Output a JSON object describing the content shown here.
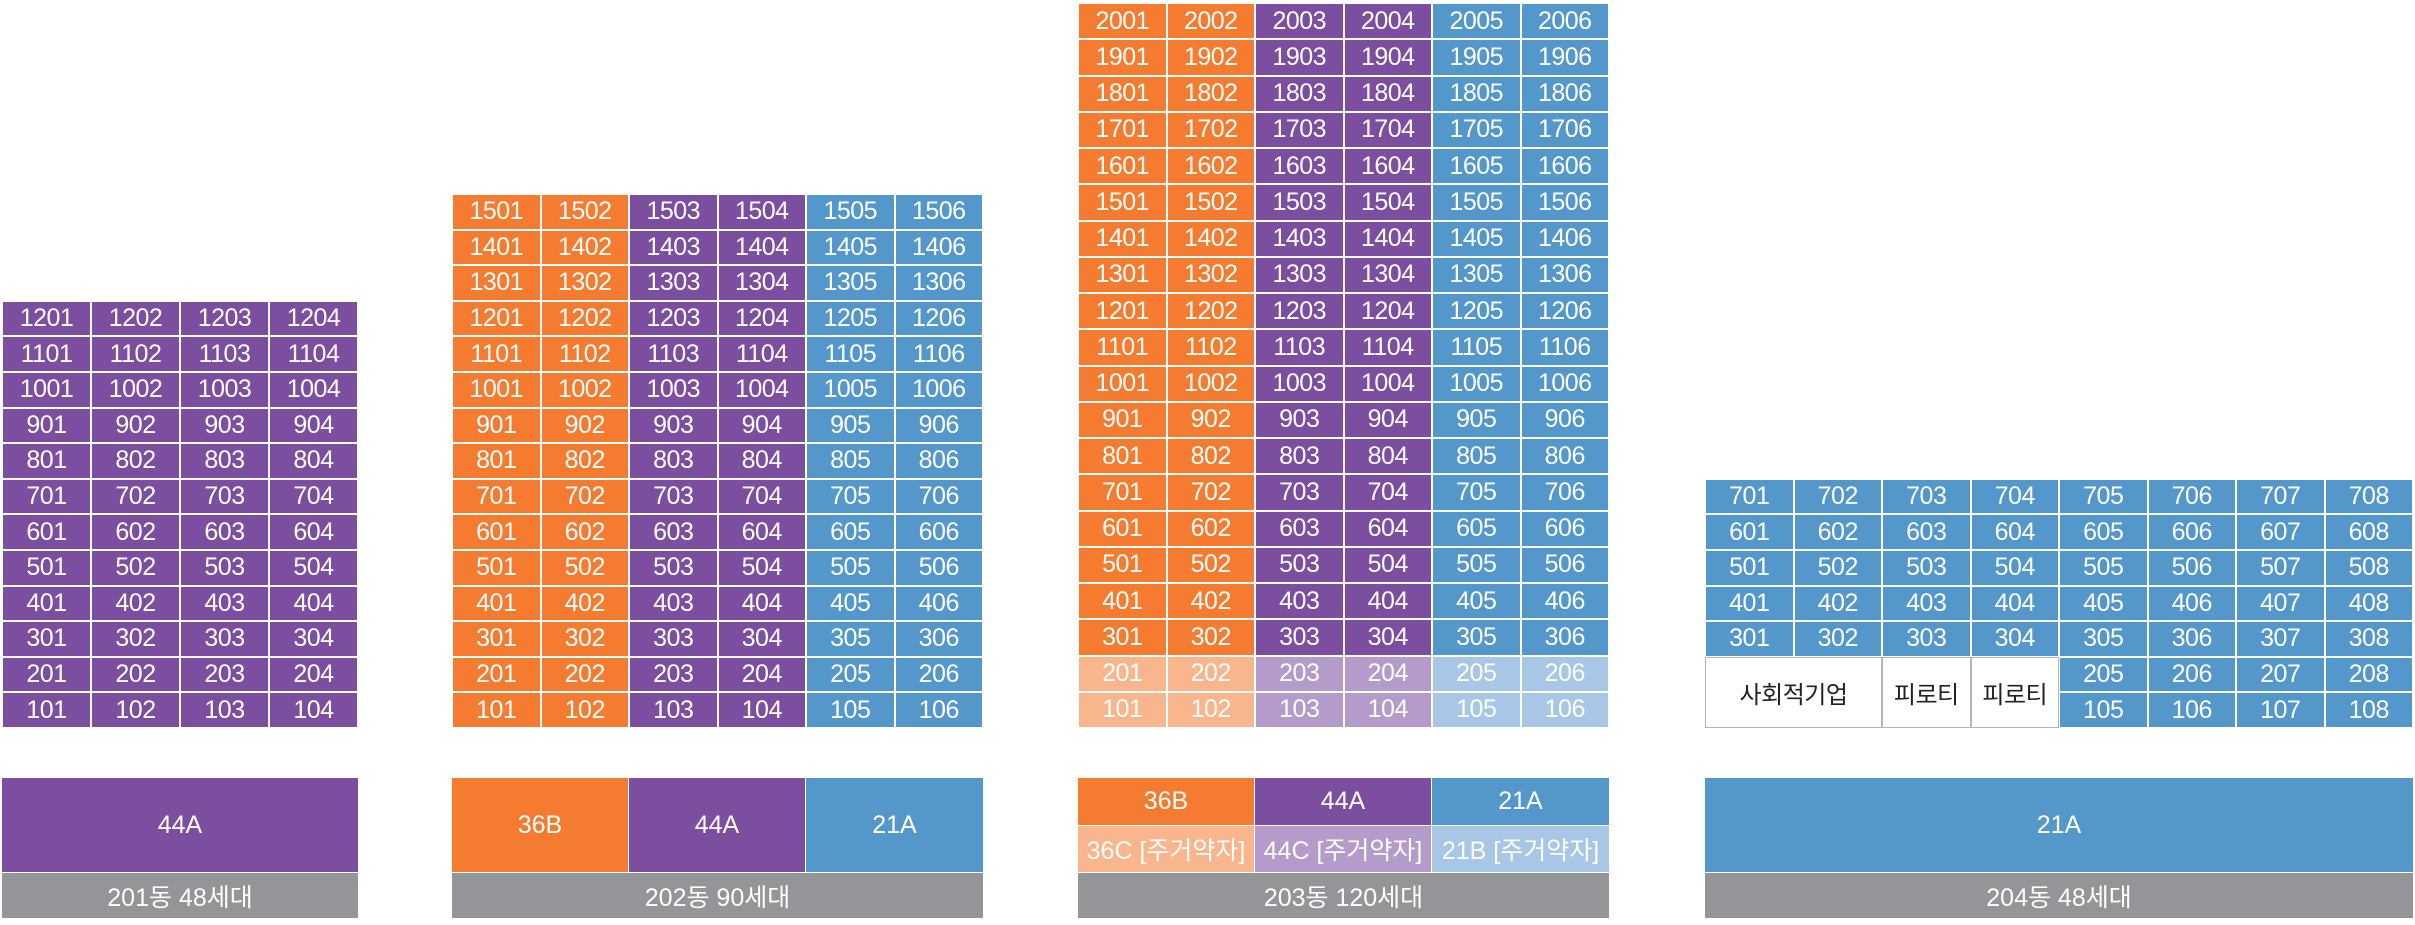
{
  "colors": {
    "orange": "#f47b2f",
    "purple": "#7b4ea0",
    "blue": "#5497cb",
    "orange_light": "#f9b58b",
    "purple_light": "#b49bc9",
    "blue_light": "#a8c6e5",
    "caption_gray": "#939598"
  },
  "buildings": [
    {
      "id": "b201",
      "caption": "201동 48세대",
      "columns": [
        "purple",
        "purple",
        "purple",
        "purple"
      ],
      "floors": [
        12,
        11,
        10,
        9,
        8,
        7,
        6,
        5,
        4,
        3,
        2,
        1
      ],
      "units_per_floor": 4,
      "legend": [
        {
          "label": "44A",
          "color": "purple",
          "span": 4
        }
      ]
    },
    {
      "id": "b202",
      "caption": "202동 90세대",
      "columns": [
        "orange",
        "orange",
        "purple",
        "purple",
        "blue",
        "blue"
      ],
      "floors": [
        15,
        14,
        13,
        12,
        11,
        10,
        9,
        8,
        7,
        6,
        5,
        4,
        3,
        2,
        1
      ],
      "units_per_floor": 6,
      "legend": [
        {
          "label": "36B",
          "color": "orange",
          "span": 2
        },
        {
          "label": "44A",
          "color": "purple",
          "span": 2
        },
        {
          "label": "21A",
          "color": "blue",
          "span": 2
        }
      ]
    },
    {
      "id": "b203",
      "caption": "203동 120세대",
      "columns": [
        "orange",
        "orange",
        "purple",
        "purple",
        "blue",
        "blue"
      ],
      "light_columns": [
        "orange_light",
        "orange_light",
        "purple_light",
        "purple_light",
        "blue_light",
        "blue_light"
      ],
      "light_floors": [
        2,
        1
      ],
      "floors": [
        20,
        19,
        18,
        17,
        16,
        15,
        14,
        13,
        12,
        11,
        10,
        9,
        8,
        7,
        6,
        5,
        4,
        3,
        2,
        1
      ],
      "units_per_floor": 6,
      "legend_rows": [
        [
          {
            "label": "36B",
            "color": "orange",
            "span": 2
          },
          {
            "label": "44A",
            "color": "purple",
            "span": 2
          },
          {
            "label": "21A",
            "color": "blue",
            "span": 2
          }
        ],
        [
          {
            "label": "36C [주거약자]",
            "color": "orange_light",
            "span": 2
          },
          {
            "label": "44C [주거약자]",
            "color": "purple_light",
            "span": 2
          },
          {
            "label": "21B [주거약자]",
            "color": "blue_light",
            "span": 2
          }
        ]
      ]
    },
    {
      "id": "b204",
      "caption": "204동 48세대",
      "columns": [
        "blue",
        "blue",
        "blue",
        "blue",
        "blue",
        "blue",
        "blue",
        "blue"
      ],
      "floors": [
        7,
        6,
        5,
        4,
        3,
        2,
        1
      ],
      "units_per_floor": 8,
      "ground_spaces": [
        {
          "label": "사회적기업",
          "span": 2
        },
        {
          "label": "피로티",
          "span": 1
        },
        {
          "label": "피로티",
          "span": 1
        }
      ],
      "ground_space_floors": [
        2,
        1
      ],
      "legend": [
        {
          "label": "21A",
          "color": "blue",
          "span": 8
        }
      ]
    }
  ]
}
